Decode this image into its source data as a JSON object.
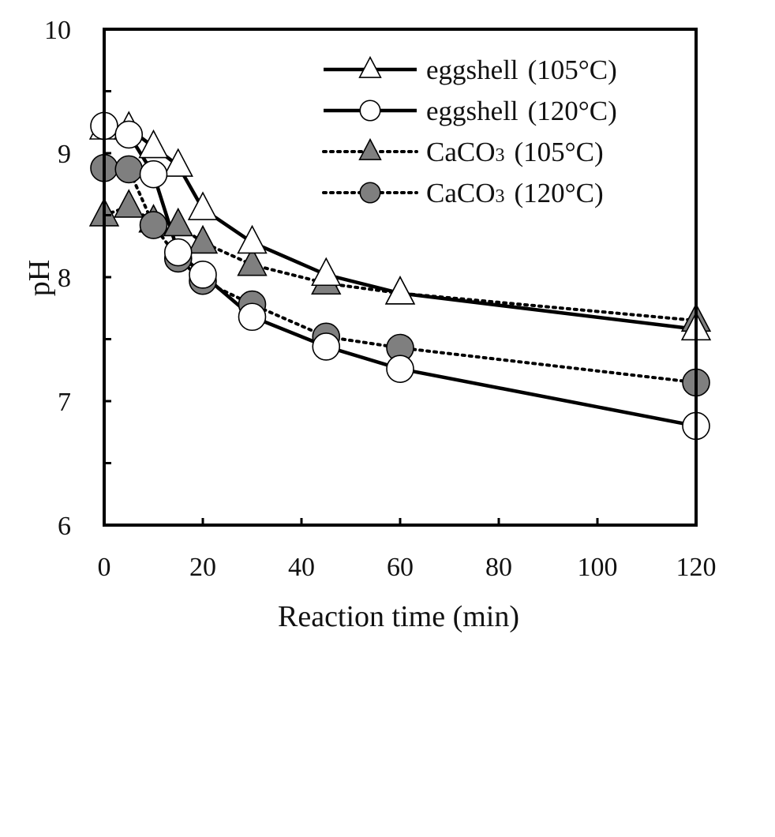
{
  "chart_data": {
    "type": "line",
    "title": "",
    "xlabel": "Reaction time (min)",
    "ylabel": "pH",
    "xlim": [
      0,
      120
    ],
    "ylim": [
      6,
      10
    ],
    "xticks": [
      0,
      20,
      40,
      60,
      80,
      100,
      120
    ],
    "yticks": [
      6,
      7,
      8,
      9,
      10
    ],
    "grid": false,
    "legend_position": "top-right",
    "series": [
      {
        "name": "eggshell (105°C)",
        "legend_main": "eggshell",
        "legend_sub": "",
        "legend_temp": "(105°C)",
        "marker": "triangle",
        "fill": "#ffffff",
        "line": "solid",
        "x": [
          0,
          5,
          10,
          15,
          20,
          30,
          45,
          60,
          120
        ],
        "y": [
          9.2,
          9.2,
          9.05,
          8.9,
          8.55,
          8.28,
          8.02,
          7.87,
          7.58
        ]
      },
      {
        "name": "eggshell (120°C)",
        "legend_main": "eggshell",
        "legend_sub": "",
        "legend_temp": "(120°C)",
        "marker": "circle",
        "fill": "#ffffff",
        "line": "solid",
        "x": [
          0,
          5,
          10,
          15,
          20,
          30,
          45,
          60,
          120
        ],
        "y": [
          9.22,
          9.15,
          8.83,
          8.2,
          8.02,
          7.68,
          7.44,
          7.26,
          6.8
        ]
      },
      {
        "name": "CaCO3 (105°C)",
        "legend_main": "CaCO",
        "legend_sub": "3",
        "legend_temp": "(105°C)",
        "marker": "triangle",
        "fill": "#7f7f7f",
        "line": "dotted",
        "x": [
          0,
          5,
          10,
          15,
          20,
          30,
          45,
          60,
          120
        ],
        "y": [
          8.5,
          8.57,
          8.45,
          8.42,
          8.28,
          8.1,
          7.95,
          7.87,
          7.65
        ]
      },
      {
        "name": "CaCO3 (120°C)",
        "legend_main": "CaCO",
        "legend_sub": "3",
        "legend_temp": "(120°C)",
        "marker": "circle",
        "fill": "#7f7f7f",
        "line": "dotted",
        "x": [
          0,
          5,
          10,
          15,
          20,
          30,
          45,
          60,
          120
        ],
        "y": [
          8.88,
          8.87,
          8.42,
          8.15,
          7.97,
          7.78,
          7.52,
          7.43,
          7.15
        ]
      }
    ]
  }
}
